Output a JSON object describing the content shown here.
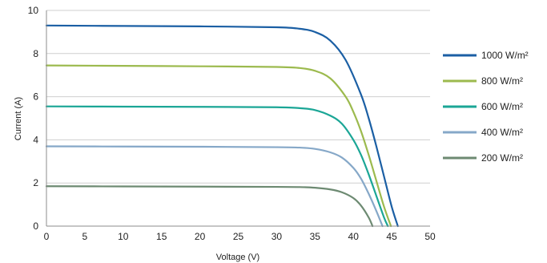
{
  "chart_data": {
    "type": "line",
    "title": "",
    "xlabel": "Voltage (V)",
    "ylabel": "Current (A)",
    "xlim": [
      0,
      50
    ],
    "ylim": [
      0,
      10
    ],
    "x_ticks": [
      0,
      5,
      10,
      15,
      20,
      25,
      30,
      35,
      40,
      45,
      50
    ],
    "y_ticks": [
      0,
      2,
      4,
      6,
      8,
      10
    ],
    "grid": "horizontal",
    "legend_position": "right",
    "series": [
      {
        "name": "1000 W/m²",
        "color": "#1b5fa4",
        "x": [
          0,
          10,
          20,
          30,
          33,
          35,
          37,
          39,
          41,
          42,
          43,
          44,
          45,
          45.8
        ],
        "y": [
          9.3,
          9.28,
          9.26,
          9.22,
          9.15,
          9.0,
          8.6,
          7.7,
          6.1,
          5.0,
          3.7,
          2.3,
          0.9,
          0
        ]
      },
      {
        "name": "800 W/m²",
        "color": "#9cba4e",
        "x": [
          0,
          10,
          20,
          30,
          33,
          35,
          37,
          39,
          40,
          41,
          42,
          43,
          44,
          44.9
        ],
        "y": [
          7.45,
          7.43,
          7.41,
          7.38,
          7.33,
          7.2,
          6.85,
          6.0,
          5.3,
          4.4,
          3.3,
          2.1,
          0.9,
          0
        ]
      },
      {
        "name": "600 W/m²",
        "color": "#1ba696",
        "x": [
          0,
          10,
          20,
          30,
          33,
          35,
          37,
          38.5,
          40,
          41,
          42,
          43,
          44,
          44.5
        ],
        "y": [
          5.55,
          5.54,
          5.53,
          5.51,
          5.47,
          5.38,
          5.12,
          4.75,
          4.0,
          3.3,
          2.4,
          1.4,
          0.4,
          0
        ]
      },
      {
        "name": "400 W/m²",
        "color": "#86a8c8",
        "x": [
          0,
          10,
          20,
          30,
          33,
          35,
          37,
          38.5,
          40,
          41,
          42,
          43,
          43.8
        ],
        "y": [
          3.7,
          3.69,
          3.68,
          3.66,
          3.64,
          3.58,
          3.42,
          3.18,
          2.7,
          2.2,
          1.5,
          0.7,
          0
        ]
      },
      {
        "name": "200 W/m²",
        "color": "#6d8a72",
        "x": [
          0,
          10,
          20,
          30,
          33,
          35,
          37,
          38.5,
          40,
          41,
          42,
          42.5
        ],
        "y": [
          1.85,
          1.84,
          1.83,
          1.82,
          1.81,
          1.78,
          1.7,
          1.57,
          1.3,
          0.95,
          0.4,
          0
        ]
      }
    ]
  }
}
